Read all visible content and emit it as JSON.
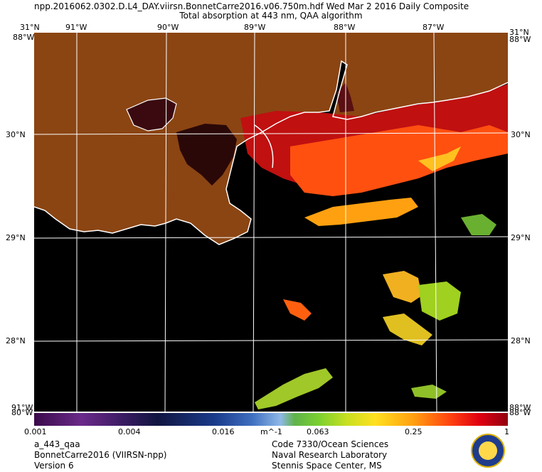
{
  "header": {
    "title_line1": "npp.2016062.0302.D.L4_DAY.viirsn.BonnetCarre2016.v06.750m.hdf    Wed Mar  2 2016 Daily Composite",
    "title_line2": "Total absorption at 443 nm, QAA algorithm"
  },
  "map": {
    "top_lon_labels": [
      "91°W",
      "90°W",
      "89°W",
      "88°W",
      "87°W"
    ],
    "lat_labels": [
      "30°N",
      "29°N",
      "28°N"
    ],
    "corner_labels": {
      "top_left_upper": "31°N",
      "top_left_lower": "88°W",
      "top_right_upper": "31°N",
      "top_right_lower": "88°W",
      "bottom_left_upper": "91°W",
      "bottom_left_lower": "80°W",
      "bottom_right_upper": "88°W",
      "bottom_right_lower": "88°W"
    },
    "colors": {
      "land": "#8b4513",
      "no_data": "#000000",
      "coast": "#ffffff",
      "grid": "#ffffff"
    }
  },
  "colorbar": {
    "ticks": [
      "0.001",
      "0.004",
      "0.016",
      "0.063",
      "0.25",
      "1"
    ],
    "unit": "m^-1",
    "scale": "log"
  },
  "footer": {
    "left": [
      "a_443_qaa",
      "BonnetCarre2016 (VIIRSN-npp)",
      "Version 6"
    ],
    "right": [
      "Code 7330/Ocean Sciences",
      "Naval Research Laboratory",
      "Stennis Space Center, MS"
    ]
  }
}
